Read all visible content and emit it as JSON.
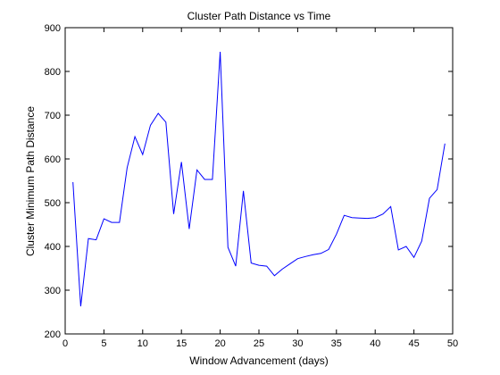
{
  "chart_data": {
    "type": "line",
    "title": "Cluster Path Distance vs Time",
    "xlabel": "Window Advancement (days)",
    "ylabel": "Cluster Minimum Path Distance",
    "xlim": [
      0,
      50
    ],
    "ylim": [
      200,
      900
    ],
    "xticks": [
      0,
      5,
      10,
      15,
      20,
      25,
      30,
      35,
      40,
      45,
      50
    ],
    "yticks": [
      200,
      300,
      400,
      500,
      600,
      700,
      800,
      900
    ],
    "grid": false,
    "series": [
      {
        "color": "#0000ff",
        "x": [
          1,
          2,
          3,
          4,
          5,
          6,
          7,
          8,
          9,
          10,
          11,
          12,
          13,
          14,
          15,
          16,
          17,
          18,
          19,
          20,
          21,
          22,
          23,
          24,
          25,
          26,
          27,
          28,
          29,
          30,
          31,
          32,
          33,
          34,
          35,
          36,
          37,
          38,
          39,
          40,
          41,
          42,
          43,
          44,
          45,
          46,
          47,
          48,
          49
        ],
        "y": [
          547,
          263,
          418,
          415,
          463,
          455,
          455,
          580,
          651,
          610,
          677,
          704,
          684,
          474,
          593,
          440,
          575,
          553,
          553,
          845,
          398,
          355,
          527,
          362,
          357,
          355,
          333,
          348,
          360,
          372,
          377,
          381,
          384,
          393,
          428,
          471,
          466,
          465,
          464,
          466,
          474,
          491,
          392,
          400,
          375,
          412,
          510,
          530,
          635
        ]
      }
    ]
  }
}
